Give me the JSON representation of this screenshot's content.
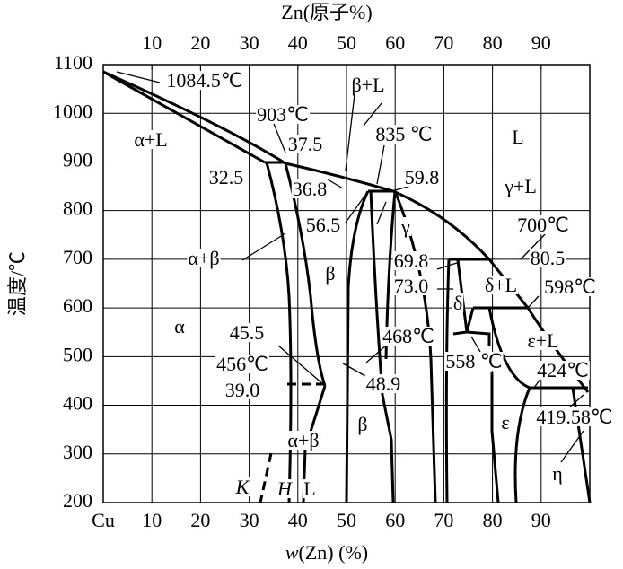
{
  "title": "Zn(原子%)",
  "y_label": "温度/℃",
  "x_label": {
    "var": "w",
    "rest": "(Zn) (%)"
  },
  "top_ticks": [
    10,
    20,
    30,
    40,
    50,
    60,
    70,
    80,
    90
  ],
  "bottom_ticks": [
    {
      "value": 0,
      "label": "Cu"
    },
    10,
    20,
    30,
    40,
    50,
    60,
    70,
    80,
    90
  ],
  "yticks": [
    200,
    300,
    400,
    500,
    600,
    700,
    800,
    900,
    1000,
    1100
  ],
  "labels": [
    "1084.5℃",
    "β+L",
    "903℃",
    "α+L",
    "37.5",
    "835 ℃",
    "L",
    "32.5",
    "59.8",
    "36.8",
    "γ+L",
    "56.5",
    "γ",
    "700℃",
    "α+β",
    "69.8",
    "80.5",
    "β",
    "73.0",
    "δ+L",
    "598℃",
    "δ",
    "α",
    "45.5",
    "468℃",
    "ε+L",
    "456℃",
    "558 ℃",
    "424℃",
    "39.0",
    "48.9",
    "β",
    "ε",
    "419.58℃",
    "α+β",
    "η",
    "K",
    "H",
    "L"
  ]
}
